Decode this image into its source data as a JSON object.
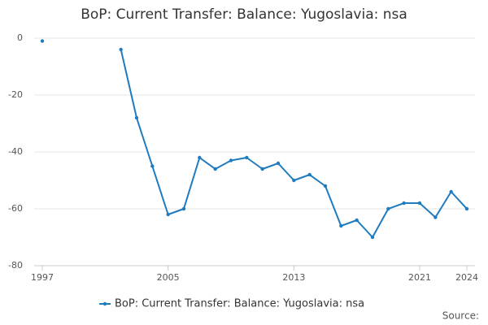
{
  "chart_data": {
    "type": "line",
    "title": "BoP: Current Transfer: Balance: Yugoslavia: nsa",
    "x": [
      1997,
      1998,
      1999,
      2000,
      2001,
      2002,
      2003,
      2004,
      2005,
      2006,
      2007,
      2008,
      2009,
      2010,
      2011,
      2012,
      2013,
      2014,
      2015,
      2016,
      2017,
      2018,
      2019,
      2020,
      2021,
      2022,
      2023,
      2024
    ],
    "series": [
      {
        "name": "BoP: Current Transfer: Balance: Yugoslavia: nsa",
        "color": "#1f7bbf",
        "values": [
          -1,
          null,
          null,
          null,
          null,
          -4,
          -28,
          -45,
          -62,
          -60,
          -42,
          -46,
          -43,
          -42,
          -46,
          -44,
          -50,
          -48,
          -52,
          -66,
          -64,
          -70,
          -60,
          -58,
          -58,
          -63,
          -54,
          -60
        ]
      }
    ],
    "xlim": [
      1997,
      2024
    ],
    "xticks": [
      1997,
      2005,
      2013,
      2021,
      2024
    ],
    "ylim": [
      -80,
      0
    ],
    "yticks": [
      0,
      -20,
      -40,
      -60,
      -80
    ],
    "grid": true,
    "source": "Source:"
  }
}
